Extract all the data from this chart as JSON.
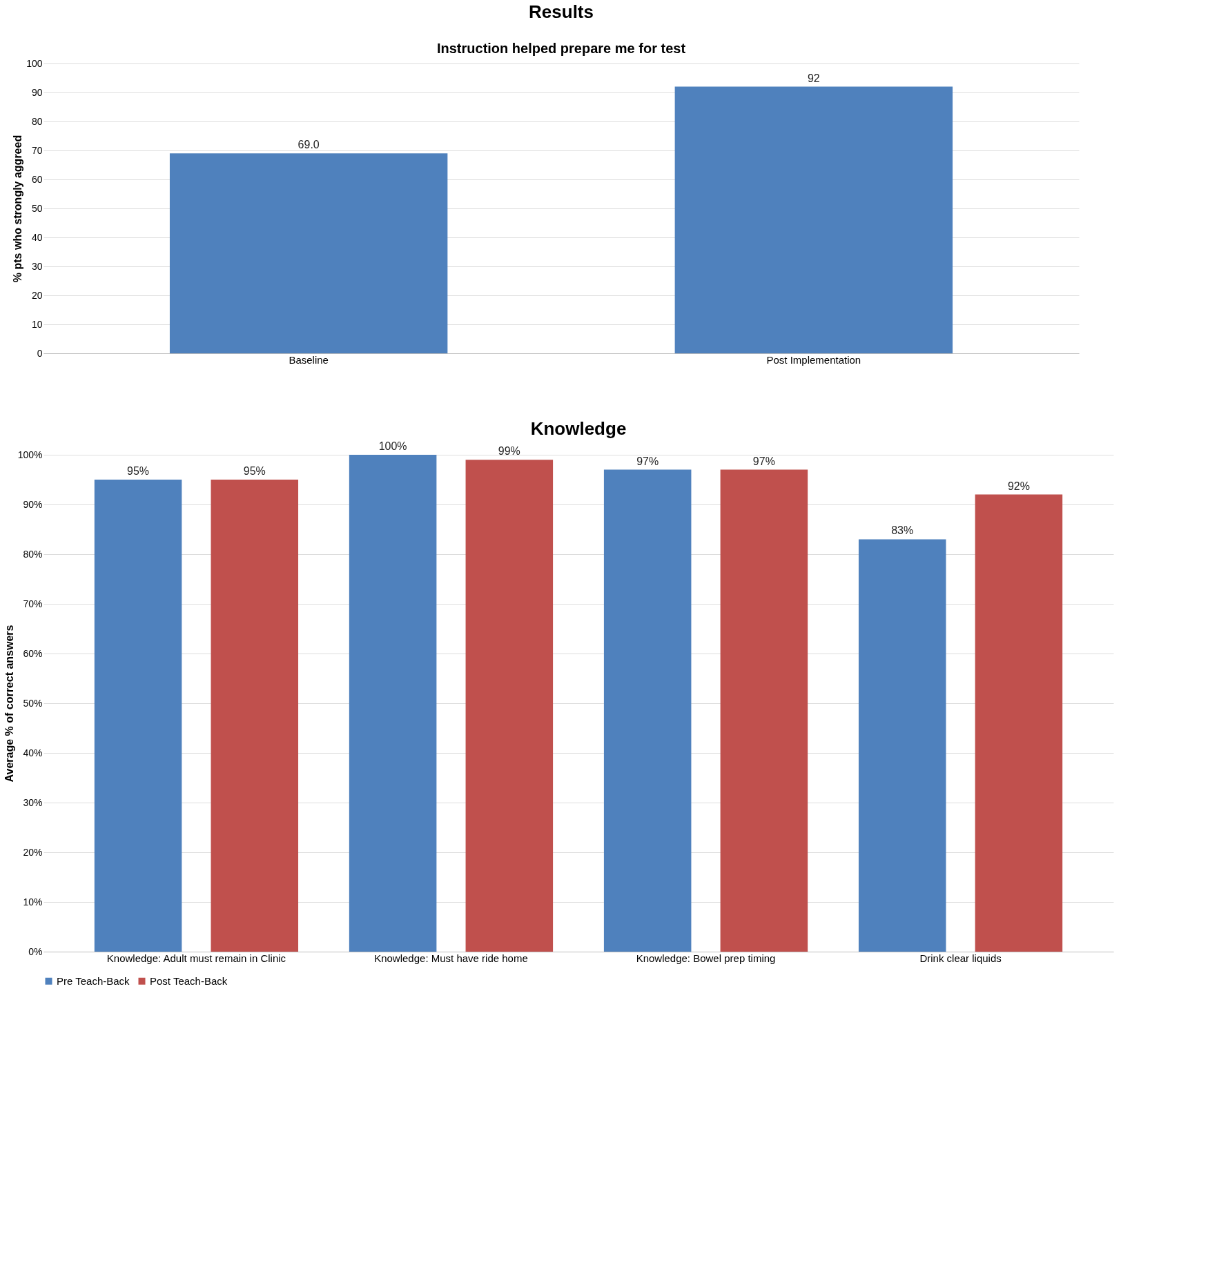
{
  "chart_data": [
    {
      "type": "bar",
      "title": "Results",
      "subtitle": "Instruction helped prepare me for test",
      "ylabel": "% pts who strongly aggreed",
      "categories": [
        "Baseline",
        "Post Implementation"
      ],
      "values": [
        69.0,
        92
      ],
      "value_labels": [
        "69.0",
        "92"
      ],
      "color": "#4f81bd",
      "ylim": [
        0,
        100
      ],
      "yticks": [
        0,
        10,
        20,
        30,
        40,
        50,
        60,
        70,
        80,
        90,
        100
      ],
      "grid": "y"
    },
    {
      "type": "bar",
      "title": "Knowledge",
      "ylabel": "Average % of correct answers",
      "categories": [
        "Knowledge:  Adult must remain in Clinic",
        "Knowledge: Must have ride home",
        "Knowledge: Bowel prep timing",
        "Drink clear liquids"
      ],
      "series": [
        {
          "name": "Pre Teach-Back",
          "color": "#4f81bd",
          "values": [
            95,
            100,
            97,
            83
          ],
          "value_labels": [
            "95%",
            "100%",
            "97%",
            "83%"
          ]
        },
        {
          "name": "Post Teach-Back",
          "color": "#c0504d",
          "values": [
            95,
            99,
            97,
            92
          ],
          "value_labels": [
            "95%",
            "99%",
            "97%",
            "92%"
          ]
        }
      ],
      "ylim": [
        0,
        100
      ],
      "yticks": [
        {
          "value": 0,
          "label": "0%"
        },
        {
          "value": 10,
          "label": "10%"
        },
        {
          "value": 20,
          "label": "20%"
        },
        {
          "value": 30,
          "label": "30%"
        },
        {
          "value": 40,
          "label": "40%"
        },
        {
          "value": 50,
          "label": "50%"
        },
        {
          "value": 60,
          "label": "60%"
        },
        {
          "value": 70,
          "label": "70%"
        },
        {
          "value": 80,
          "label": "80%"
        },
        {
          "value": 90,
          "label": "90%"
        },
        {
          "value": 100,
          "label": "100%"
        }
      ],
      "grid": "y",
      "legend": "bottom"
    }
  ]
}
